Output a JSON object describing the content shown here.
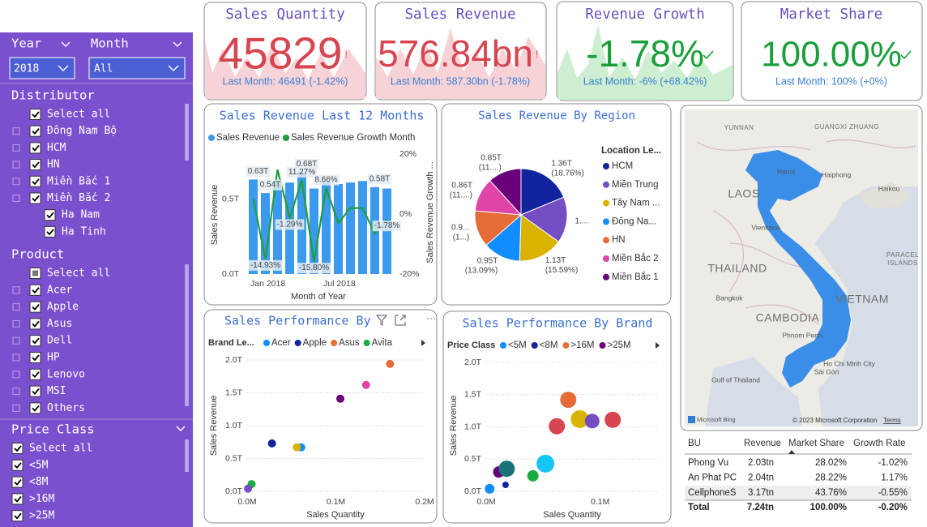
{
  "filters": {
    "year": {
      "label": "Year",
      "value": "2018"
    },
    "month": {
      "label": "Month",
      "value": "All"
    },
    "distributor": {
      "title": "Distributor",
      "items": [
        "Select all",
        "Đông Nam Bộ",
        "HCM",
        "HN",
        "Miền Bắc 1",
        "Miền Bắc 2",
        "Ha Nam",
        "Ha Tinh"
      ]
    },
    "product": {
      "title": "Product",
      "items": [
        "Select all",
        "Acer",
        "Apple",
        "Asus",
        "Dell",
        "HP",
        "Lenovo",
        "MSI",
        "Others"
      ]
    },
    "price_class": {
      "title": "Price Class",
      "items": [
        "Select all",
        "<5M",
        "<8M",
        ">16M",
        ">25M"
      ]
    }
  },
  "kpis": [
    {
      "title": "Sales Quantity",
      "value": "45829",
      "flag": "!",
      "last_month": "Last Month: 46491 (-1.42%)"
    },
    {
      "title": "Sales Revenue",
      "value": "576.84bn",
      "flag": "!",
      "last_month": "Last Month: 587.30bn (-1.78%)"
    },
    {
      "title": "Revenue Growth",
      "value": "-1.78%",
      "last_month": "Last Month: -6% (+68.42%)"
    },
    {
      "title": "Market Share",
      "value": "100.00%",
      "last_month": "Last Month: 100% (+0%)"
    }
  ],
  "chart_data": [
    {
      "type": "combo",
      "title": "Sales Revenue Last 12 Months",
      "x_label": "Month of Year",
      "y_label": "Sales Revenue",
      "y2_label": "Sales Revenue Growth ...",
      "categories": [
        "Jan 2018",
        null,
        null,
        null,
        null,
        null,
        "Jul 2018",
        null,
        null,
        null,
        null,
        null
      ],
      "series": [
        {
          "name": "Sales Revenue",
          "color": "#3b99ee",
          "values": [
            0.63,
            0.54,
            0.62,
            0.61,
            0.68,
            0.57,
            0.62,
            0.6,
            0.61,
            0.62,
            0.58,
            0.57
          ],
          "value_labels": [
            "0.63T",
            "0.54T",
            null,
            null,
            "0.68T",
            null,
            null,
            null,
            null,
            null,
            "0.58T",
            null
          ]
        },
        {
          "name": "Sales Revenue Growth Month",
          "color": "#1f9e3a",
          "axis": "y2",
          "values": [
            5,
            -14.93,
            14.8,
            -1.29,
            11.27,
            -15.8,
            8.66,
            -3,
            2,
            2,
            -6.5,
            -1.78
          ],
          "value_labels": [
            null,
            "-14.93%",
            null,
            "-1.29%",
            "11.27%",
            "-15.80%",
            "8.66%",
            null,
            null,
            null,
            null,
            "-1.78%"
          ]
        }
      ],
      "ylim": [
        0,
        0.8
      ],
      "yticks": [
        {
          "value": 0,
          "label": "0.0T"
        },
        {
          "value": 0.5,
          "label": "0.5T"
        }
      ],
      "y2lim": [
        -20,
        20
      ],
      "y2ticks": [
        {
          "value": -20,
          "label": "-20%"
        },
        {
          "value": 0,
          "label": "0%"
        },
        {
          "value": 20,
          "label": "20%"
        }
      ],
      "grid": false
    },
    {
      "type": "pie",
      "title": "Sales Revenue By Region",
      "legend_title": "Location Le...",
      "categories": [
        "HCM",
        "Miền Trung",
        "Tây Nam ...",
        "Đông Na...",
        "HN",
        "Miền Bắc 2",
        "Miền Bắc 1"
      ],
      "values": [
        1.36,
        1.17,
        1.13,
        0.95,
        0.93,
        0.86,
        0.85
      ],
      "value_labels": [
        "1.36T (18.76%)",
        "1....",
        "1.13T (15.59%)",
        "0.95T (13.09%)",
        "0.9... (1...)",
        "0.86T (11....)",
        "0.85T (11....)"
      ],
      "colors": [
        "#12239e",
        "#744ec2",
        "#d9b300",
        "#118dff",
        "#e66c37",
        "#e044a7",
        "#6b007b"
      ]
    },
    {
      "type": "scatter",
      "title": "Sales Performance By",
      "legend_title": "Brand Le...",
      "x_label": "Sales Quantity",
      "y_label": "Sales Revenue",
      "series": [
        {
          "name": "Acer",
          "color": "#118dff",
          "x": [
            0.061
          ],
          "values": [
            0.67
          ]
        },
        {
          "name": "Apple",
          "color": "#12239e",
          "x": [
            0.028
          ],
          "values": [
            0.73
          ]
        },
        {
          "name": "Asus",
          "color": "#e66c37",
          "x": [
            0.161
          ],
          "values": [
            1.94
          ]
        },
        {
          "name": "Avita",
          "color": "#1aab40",
          "x": [
            0.005
          ],
          "values": [
            0.11
          ]
        },
        {
          "color": "#e044a7",
          "x": [
            0.134
          ],
          "values": [
            1.62
          ]
        },
        {
          "color": "#6b007b",
          "x": [
            0.105
          ],
          "values": [
            1.41
          ]
        },
        {
          "color": "#d9b300",
          "x": [
            0.056
          ],
          "values": [
            0.67
          ]
        },
        {
          "color": "#744ec2",
          "x": [
            0.001
          ],
          "values": [
            0.04
          ]
        }
      ],
      "xlim": [
        0,
        0.2
      ],
      "xticks": [
        {
          "value": 0,
          "label": "0.0M"
        },
        {
          "value": 0.1,
          "label": "0.1M"
        },
        {
          "value": 0.2,
          "label": "0.2M"
        }
      ],
      "ylim": [
        0,
        2
      ],
      "yticks": [
        {
          "value": 0,
          "label": "0.0T"
        },
        {
          "value": 0.5,
          "label": "0.5T"
        },
        {
          "value": 1,
          "label": "1.0T"
        },
        {
          "value": 1.5,
          "label": "1.5T"
        },
        {
          "value": 2,
          "label": "2.0T"
        }
      ],
      "grid": true
    },
    {
      "type": "bubble",
      "title": "Sales Performance By Brand",
      "legend_title": "Price Class",
      "x_label": "Sales Quantity",
      "y_label": "Sales Revenue",
      "legend": [
        {
          "name": "<5M",
          "color": "#118dff"
        },
        {
          "name": "<8M",
          "color": "#12239e"
        },
        {
          "name": ">16M",
          "color": "#e66c37"
        },
        {
          "name": ">25M",
          "color": "#6b007b"
        }
      ],
      "x": [
        0.003,
        0.017,
        0.011,
        0.018,
        0.041,
        0.052,
        0.062,
        0.072,
        0.082,
        0.093,
        0.111
      ],
      "values": [
        0.04,
        0.1,
        0.3,
        0.35,
        0.24,
        0.43,
        1.01,
        1.42,
        1.12,
        1.09,
        1.11
      ],
      "sizes": [
        36,
        16,
        49,
        100,
        49,
        121,
        100,
        100,
        121,
        81,
        100
      ],
      "colors": [
        "#118dff",
        "#12239e",
        "#6b007b",
        "#197278",
        "#1aab40",
        "#15c6f4",
        "#d64550",
        "#e66c37",
        "#d9b300",
        "#744ec2",
        "#d64550"
      ],
      "xlim": [
        0,
        0.15
      ],
      "xticks": [
        {
          "value": 0,
          "label": "0.0M"
        },
        {
          "value": 0.1,
          "label": "0.1M"
        }
      ],
      "ylim": [
        0,
        2
      ],
      "yticks": [
        {
          "value": 0,
          "label": "0.0T"
        },
        {
          "value": 0.5,
          "label": "0.5T"
        },
        {
          "value": 1,
          "label": "1.0T"
        },
        {
          "value": 1.5,
          "label": "1.5T"
        },
        {
          "value": 2,
          "label": "2.0T"
        }
      ],
      "grid": true
    }
  ],
  "map": {
    "places": [
      "YUNNAN",
      "GUANGXI ZHUANG",
      "Hanoi",
      "Haiphong",
      "Haikou",
      "LAOS",
      "Vientiane",
      "THAILAND",
      "Bangkok",
      "CAMBODIA",
      "Phnom Penh",
      "VIETNAM",
      "Ho Chi Minh City",
      "Sài Gòn",
      "Gulf of Thailand",
      "PARACEL ISLANDS"
    ],
    "bing": "Microsoft Bing",
    "attribution": "© 2023 Microsoft Corporation",
    "terms": "Terms"
  },
  "table": {
    "columns": [
      "BU",
      "Revenue",
      "Market Share",
      "Growth Rate"
    ],
    "rows": [
      [
        "Phong Vu",
        "2.03tn",
        "28.02%",
        "-1.02%"
      ],
      [
        "An Phat PC",
        "2.04tn",
        "28.22%",
        "1.17%"
      ],
      [
        "CellphoneS",
        "3.17tn",
        "43.76%",
        "-0.55%"
      ]
    ],
    "total": [
      "Total",
      "7.24tn",
      "100.00%",
      "-0.20%"
    ]
  }
}
